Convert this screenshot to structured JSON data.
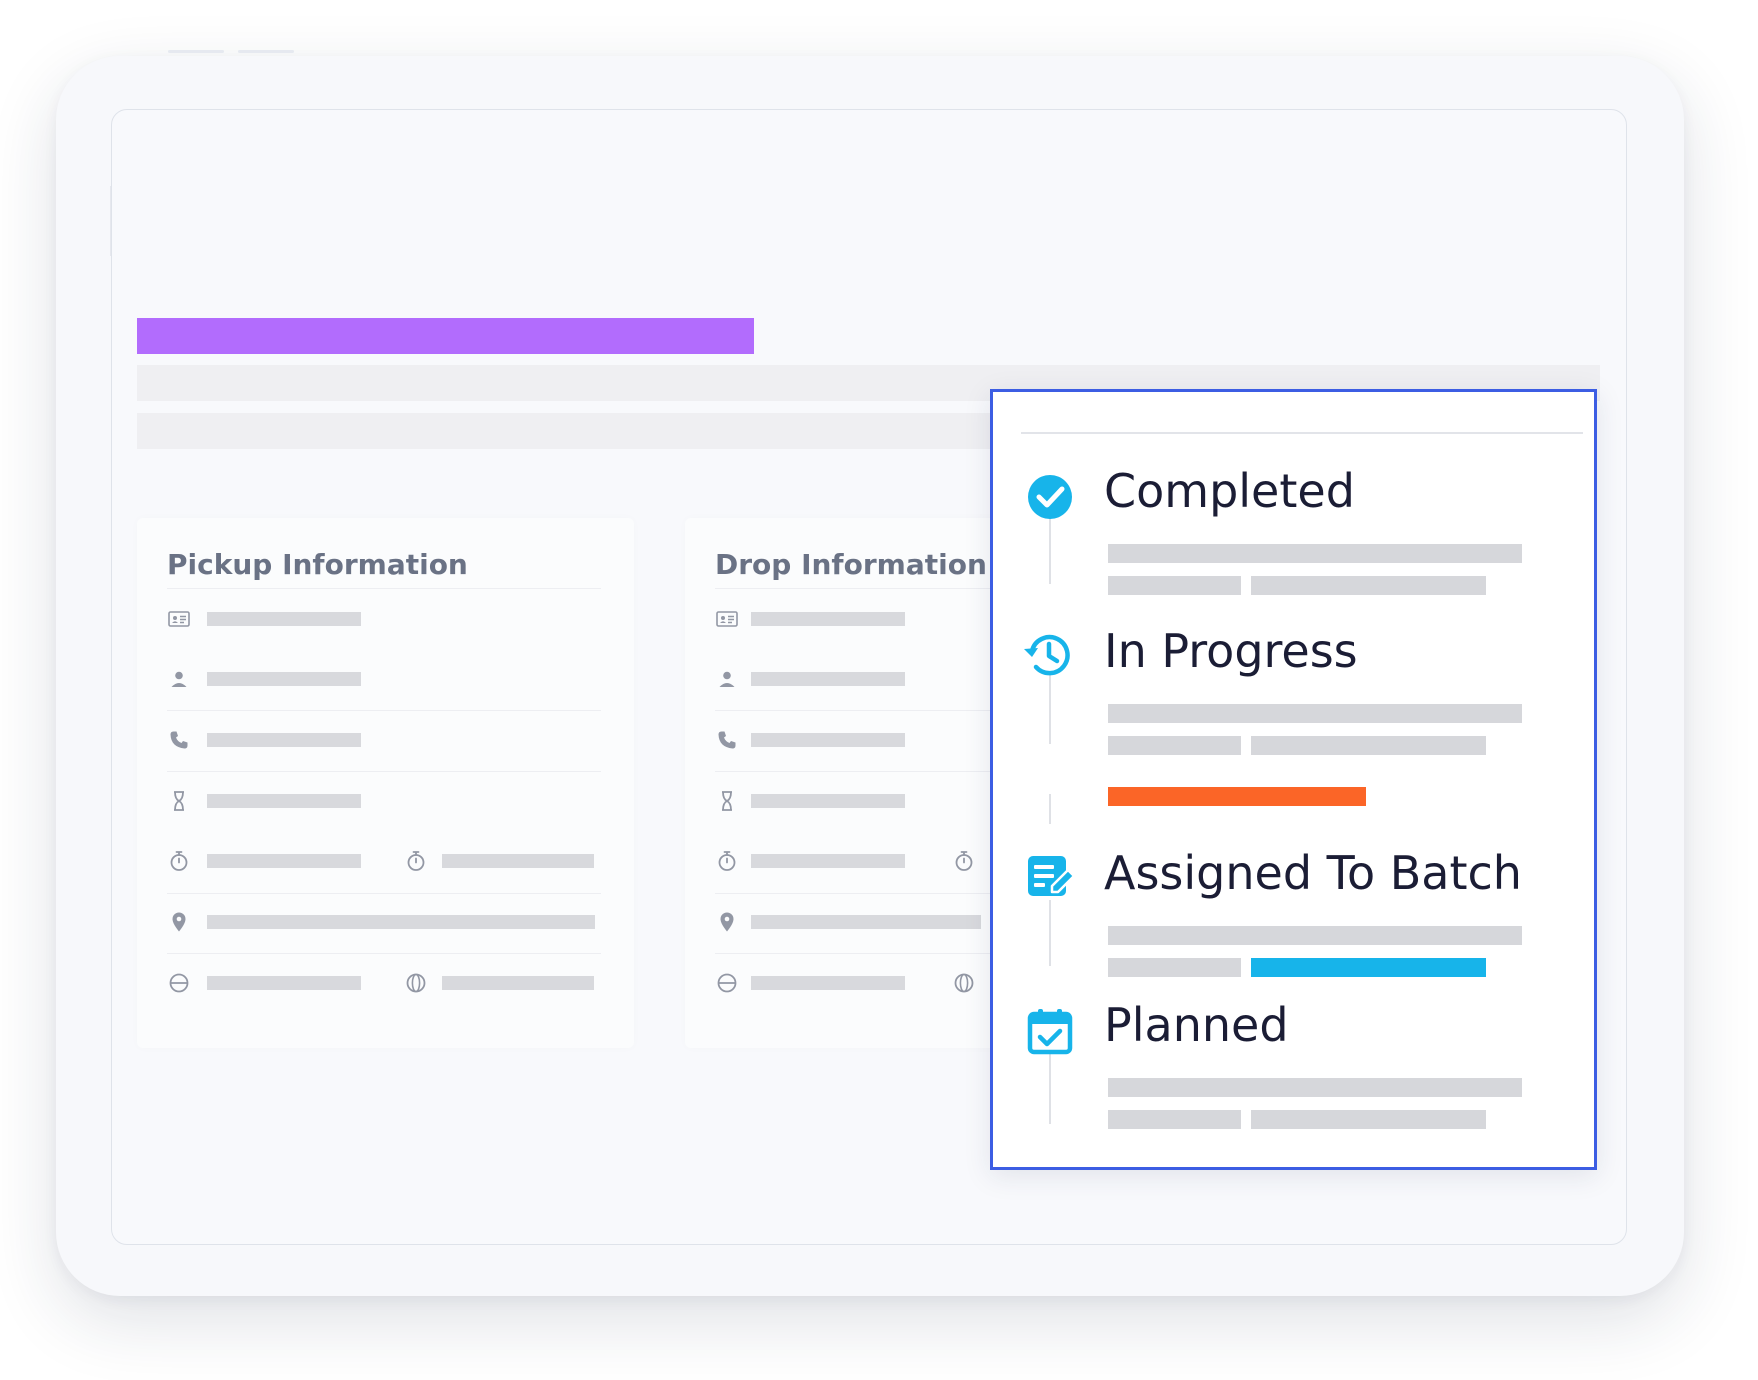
{
  "pickup": {
    "title": "Pickup Information",
    "icons": [
      "id-card-icon",
      "person-icon",
      "phone-icon",
      "hourglass-icon",
      "stopwatch-icon",
      "location-pin-icon",
      "world-icon"
    ]
  },
  "drop": {
    "title": "Drop Information",
    "icons": [
      "id-card-icon",
      "person-icon",
      "phone-icon",
      "hourglass-icon",
      "stopwatch-icon",
      "location-pin-icon",
      "world-icon"
    ]
  },
  "statuses": [
    {
      "label": "Completed",
      "icon": "check-circle-icon"
    },
    {
      "label": "In Progress",
      "icon": "history-clock-icon"
    },
    {
      "label": "Assigned To Batch",
      "icon": "list-edit-icon"
    },
    {
      "label": "Planned",
      "icon": "calendar-check-icon"
    }
  ],
  "colors": {
    "header_accent": "#b26cfd",
    "status_accent": "#17b4ea",
    "progress_accent": "#fb6527",
    "panel_border": "#3c5de3",
    "skeleton": "#d8d9dd"
  }
}
